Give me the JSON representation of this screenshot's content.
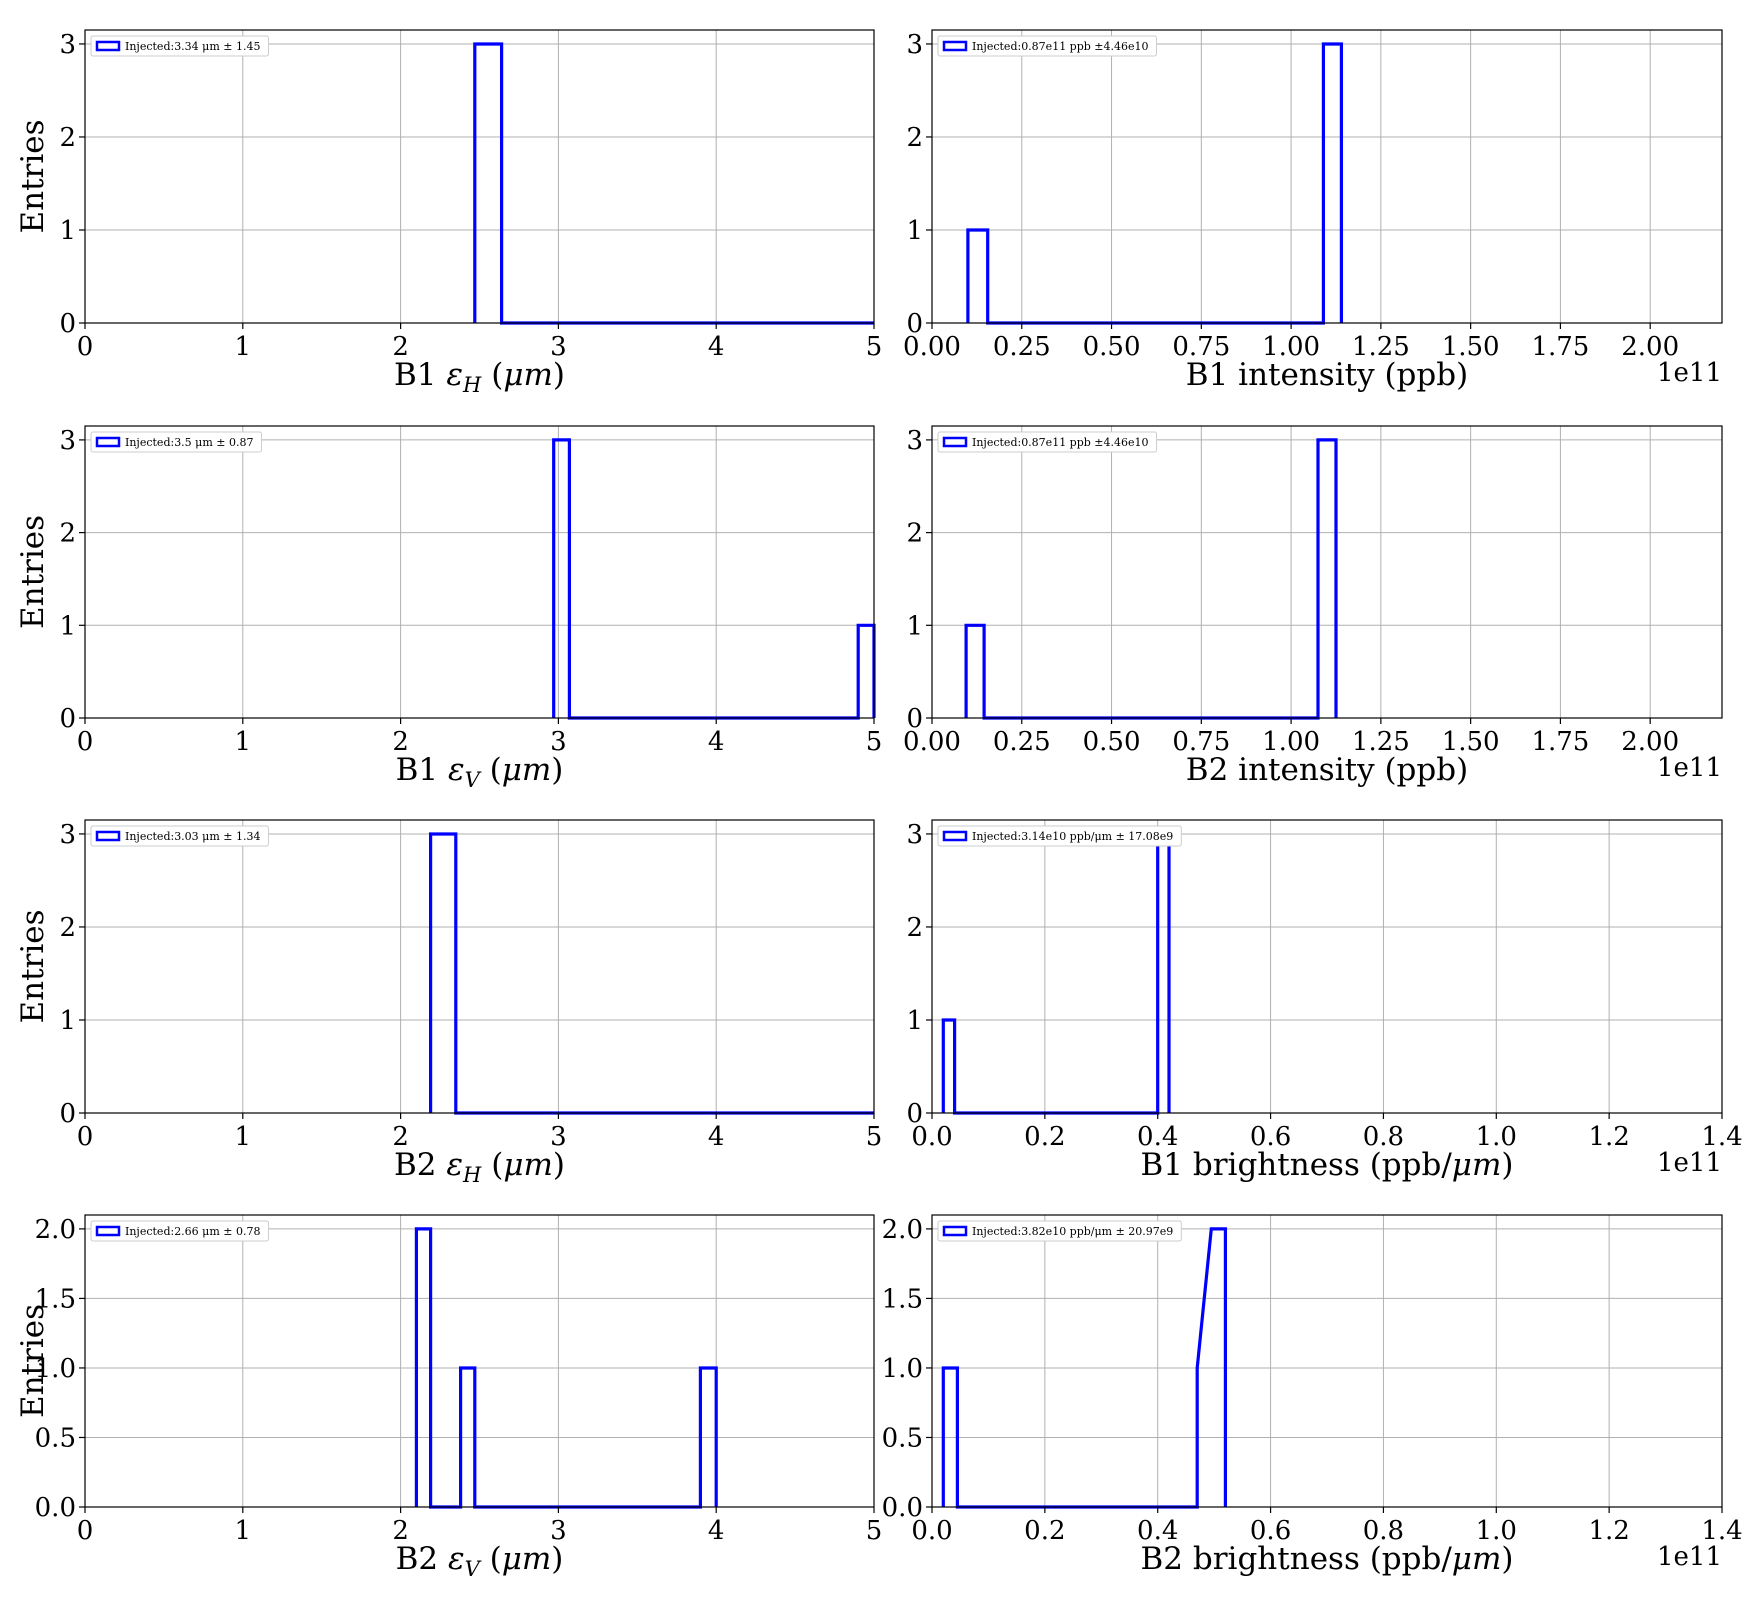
{
  "colors": {
    "series": "#0000ff",
    "grid": "#b0b0b0",
    "axes": "#000000"
  },
  "chart_data": [
    {
      "type": "histogram",
      "xlabel_main": "B1 ",
      "xlabel_sym": "ε",
      "xlabel_sub": "H",
      "xlabel_unit": " (μm)",
      "ylabel": "Entries",
      "xlim": [
        0,
        5
      ],
      "ylim": [
        0,
        3.15
      ],
      "xticks": [
        0,
        1,
        2,
        3,
        4,
        5
      ],
      "xtick_labels": [
        "0",
        "1",
        "2",
        "3",
        "4",
        "5"
      ],
      "yticks": [
        0,
        1,
        2,
        3
      ],
      "ytick_labels": [
        "0",
        "1",
        "2",
        "3"
      ],
      "legend": "Injected:3.34 μm ± 1.45",
      "legend_position": "upper-left",
      "grid": true,
      "step_x": [
        2.47,
        2.47,
        2.64,
        2.64,
        5.0
      ],
      "step_y": [
        0,
        3,
        3,
        0,
        0
      ]
    },
    {
      "type": "histogram",
      "xlabel_main": "B1 intensity (ppb)",
      "xlabel_sym": "",
      "xlabel_sub": "",
      "xlabel_unit": "",
      "ylabel": "",
      "xlim": [
        0,
        2.2
      ],
      "ylim": [
        0,
        3.15
      ],
      "x_offset_label": "1e11",
      "xticks": [
        0,
        0.25,
        0.5,
        0.75,
        1.0,
        1.25,
        1.5,
        1.75,
        2.0
      ],
      "xtick_labels": [
        "0.00",
        "0.25",
        "0.50",
        "0.75",
        "1.00",
        "1.25",
        "1.50",
        "1.75",
        "2.00"
      ],
      "yticks": [
        0,
        1,
        2,
        3
      ],
      "ytick_labels": [
        "0",
        "1",
        "2",
        "3"
      ],
      "legend": "Injected:0.87e11 ppb ±4.46e10",
      "legend_position": "upper-left",
      "grid": true,
      "step_x": [
        0.1,
        0.1,
        0.155,
        0.155,
        1.09,
        1.09,
        1.14,
        1.14
      ],
      "step_y": [
        0,
        1,
        1,
        0,
        0,
        3,
        3,
        0
      ]
    },
    {
      "type": "histogram",
      "xlabel_main": "B1 ",
      "xlabel_sym": "ε",
      "xlabel_sub": "V",
      "xlabel_unit": " (μm)",
      "ylabel": "Entries",
      "xlim": [
        0,
        5
      ],
      "ylim": [
        0,
        3.15
      ],
      "xticks": [
        0,
        1,
        2,
        3,
        4,
        5
      ],
      "xtick_labels": [
        "0",
        "1",
        "2",
        "3",
        "4",
        "5"
      ],
      "yticks": [
        0,
        1,
        2,
        3
      ],
      "ytick_labels": [
        "0",
        "1",
        "2",
        "3"
      ],
      "legend": "Injected:3.5 μm ± 0.87",
      "legend_position": "upper-left",
      "grid": true,
      "step_x": [
        2.97,
        2.97,
        3.07,
        3.07,
        4.9,
        4.9,
        5.0,
        5.0
      ],
      "step_y": [
        0,
        3,
        3,
        0,
        0,
        1,
        1,
        0
      ]
    },
    {
      "type": "histogram",
      "xlabel_main": "B2 intensity (ppb)",
      "xlabel_sym": "",
      "xlabel_sub": "",
      "xlabel_unit": "",
      "ylabel": "",
      "xlim": [
        0,
        2.2
      ],
      "ylim": [
        0,
        3.15
      ],
      "x_offset_label": "1e11",
      "xticks": [
        0,
        0.25,
        0.5,
        0.75,
        1.0,
        1.25,
        1.5,
        1.75,
        2.0
      ],
      "xtick_labels": [
        "0.00",
        "0.25",
        "0.50",
        "0.75",
        "1.00",
        "1.25",
        "1.50",
        "1.75",
        "2.00"
      ],
      "yticks": [
        0,
        1,
        2,
        3
      ],
      "ytick_labels": [
        "0",
        "1",
        "2",
        "3"
      ],
      "legend": "Injected:0.87e11 ppb ±4.46e10",
      "legend_position": "upper-left",
      "grid": true,
      "step_x": [
        0.095,
        0.095,
        0.145,
        0.145,
        1.075,
        1.075,
        1.125,
        1.125
      ],
      "step_y": [
        0,
        1,
        1,
        0,
        0,
        3,
        3,
        0
      ]
    },
    {
      "type": "histogram",
      "xlabel_main": "B2 ",
      "xlabel_sym": "ε",
      "xlabel_sub": "H",
      "xlabel_unit": " (μm)",
      "ylabel": "Entries",
      "xlim": [
        0,
        5
      ],
      "ylim": [
        0,
        3.15
      ],
      "xticks": [
        0,
        1,
        2,
        3,
        4,
        5
      ],
      "xtick_labels": [
        "0",
        "1",
        "2",
        "3",
        "4",
        "5"
      ],
      "yticks": [
        0,
        1,
        2,
        3
      ],
      "ytick_labels": [
        "0",
        "1",
        "2",
        "3"
      ],
      "legend": "Injected:3.03 μm ± 1.34",
      "legend_position": "upper-left",
      "grid": true,
      "step_x": [
        2.19,
        2.19,
        2.35,
        2.35,
        5.0
      ],
      "step_y": [
        0,
        3,
        3,
        0,
        0
      ]
    },
    {
      "type": "histogram",
      "xlabel_main": "B1 brightness (ppb/",
      "xlabel_sym": "μm",
      "xlabel_sub": "",
      "xlabel_unit": ")",
      "ylabel": "",
      "xlim": [
        0,
        1.4
      ],
      "ylim": [
        0,
        3.15
      ],
      "x_offset_label": "1e11",
      "xticks": [
        0,
        0.2,
        0.4,
        0.6,
        0.8,
        1.0,
        1.2,
        1.4
      ],
      "xtick_labels": [
        "0.0",
        "0.2",
        "0.4",
        "0.6",
        "0.8",
        "1.0",
        "1.2",
        "1.4"
      ],
      "yticks": [
        0,
        1,
        2,
        3
      ],
      "ytick_labels": [
        "0",
        "1",
        "2",
        "3"
      ],
      "legend": "Injected:3.14e10 ppb/μm ± 17.08e9",
      "legend_position": "upper-left",
      "grid": true,
      "step_x": [
        0.02,
        0.02,
        0.04,
        0.04,
        0.4,
        0.4,
        0.42,
        0.42
      ],
      "step_y": [
        0,
        1,
        1,
        0,
        0,
        3,
        3,
        0
      ]
    },
    {
      "type": "histogram",
      "xlabel_main": "B2 ",
      "xlabel_sym": "ε",
      "xlabel_sub": "V",
      "xlabel_unit": " (μm)",
      "ylabel": "Entries",
      "xlim": [
        0,
        5
      ],
      "ylim": [
        0,
        2.1
      ],
      "xticks": [
        0,
        1,
        2,
        3,
        4,
        5
      ],
      "xtick_labels": [
        "0",
        "1",
        "2",
        "3",
        "4",
        "5"
      ],
      "yticks": [
        0,
        0.5,
        1.0,
        1.5,
        2.0
      ],
      "ytick_labels": [
        "0.0",
        "0.5",
        "1.0",
        "1.5",
        "2.0"
      ],
      "legend": "Injected:2.66 μm ± 0.78",
      "legend_position": "upper-left",
      "grid": true,
      "step_x": [
        2.1,
        2.1,
        2.19,
        2.19,
        2.38,
        2.38,
        2.47,
        2.47,
        3.9,
        3.9,
        4.0,
        4.0
      ],
      "step_y": [
        0,
        2,
        2,
        0,
        0,
        1,
        1,
        0,
        0,
        1,
        1,
        0
      ]
    },
    {
      "type": "histogram",
      "xlabel_main": "B2 brightness (ppb/",
      "xlabel_sym": "μm",
      "xlabel_sub": "",
      "xlabel_unit": ")",
      "ylabel": "",
      "xlim": [
        0,
        1.4
      ],
      "ylim": [
        0,
        2.1
      ],
      "x_offset_label": "1e11",
      "xticks": [
        0,
        0.2,
        0.4,
        0.6,
        0.8,
        1.0,
        1.2,
        1.4
      ],
      "xtick_labels": [
        "0.0",
        "0.2",
        "0.4",
        "0.6",
        "0.8",
        "1.0",
        "1.2",
        "1.4"
      ],
      "yticks": [
        0,
        0.5,
        1.0,
        1.5,
        2.0
      ],
      "ytick_labels": [
        "0.0",
        "0.5",
        "1.0",
        "1.5",
        "2.0"
      ],
      "legend": "Injected:3.82e10 ppb/μm ± 20.97e9",
      "legend_position": "upper-left",
      "grid": true,
      "step_x": [
        0.02,
        0.02,
        0.045,
        0.045,
        0.47,
        0.47,
        0.495,
        0.495,
        0.52,
        0.52
      ],
      "step_y": [
        0,
        1,
        1,
        0,
        0,
        1,
        2,
        2,
        2,
        0
      ]
    }
  ]
}
